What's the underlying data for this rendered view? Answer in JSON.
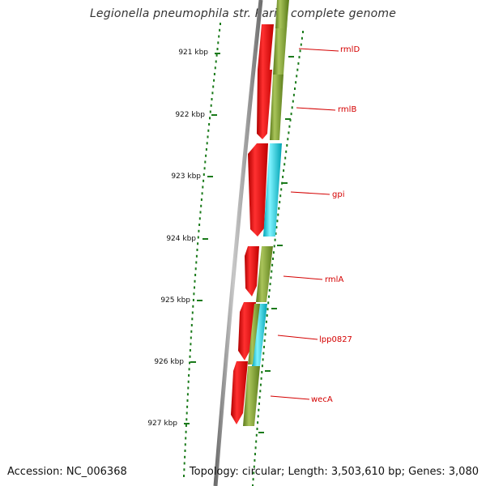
{
  "title": "Legionella pneumophila str. Paris, complete genome",
  "accession": "Accession: NC_006368",
  "topology": "Topology: circular; Length: 3,503,610 bp; Genes: 3,080",
  "colors": {
    "backbone": "#8a8a8a",
    "gene_forward": "#e60000",
    "gene_olive": "#6b8e23",
    "gene_cyan": "#00bcd4",
    "tick": "#1a7a1a",
    "label_line": "#d40000"
  },
  "ruler": [
    {
      "label": "921 kbp"
    },
    {
      "label": "922 kbp"
    },
    {
      "label": "923 kbp"
    },
    {
      "label": "924 kbp"
    },
    {
      "label": "925 kbp"
    },
    {
      "label": "926 kbp"
    },
    {
      "label": "927 kbp"
    }
  ],
  "genes": [
    {
      "name": "rmlD"
    },
    {
      "name": "rmlB"
    },
    {
      "name": "gpi"
    },
    {
      "name": "rmlA"
    },
    {
      "name": "lpp0827"
    },
    {
      "name": "wecA"
    }
  ]
}
